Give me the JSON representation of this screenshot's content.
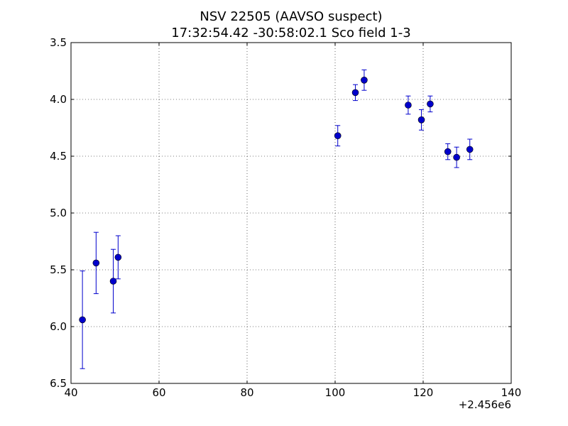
{
  "chart_data": {
    "type": "scatter",
    "title": "NSV 22505  (AAVSO suspect)",
    "subtitle": "17:32:54.42 -30:58:02.1 Sco field 1-3",
    "xlabel": "",
    "ylabel": "",
    "x_offset_label": "+2.456e6",
    "xlim": [
      40,
      140
    ],
    "ylim": [
      6.5,
      3.5
    ],
    "y_inverted": true,
    "grid": true,
    "xticks": [
      40,
      60,
      80,
      100,
      120,
      140
    ],
    "xtick_labels": [
      "40",
      "60",
      "80",
      "100",
      "120",
      "140"
    ],
    "yticks": [
      3.5,
      4.0,
      4.5,
      5.0,
      5.5,
      6.0,
      6.5
    ],
    "ytick_labels": [
      "3.5",
      "4.0",
      "4.5",
      "5.0",
      "5.5",
      "6.0",
      "6.5"
    ],
    "series": [
      {
        "color": "#0000cc",
        "marker": "circle",
        "points": [
          {
            "x": 42.6,
            "y": 5.94,
            "err": 0.43
          },
          {
            "x": 45.7,
            "y": 5.44,
            "err": 0.27
          },
          {
            "x": 49.6,
            "y": 5.6,
            "err": 0.28
          },
          {
            "x": 50.7,
            "y": 5.39,
            "err": 0.19
          },
          {
            "x": 100.6,
            "y": 4.32,
            "err": 0.09
          },
          {
            "x": 104.6,
            "y": 3.94,
            "err": 0.07
          },
          {
            "x": 106.6,
            "y": 3.83,
            "err": 0.09
          },
          {
            "x": 116.6,
            "y": 4.05,
            "err": 0.08
          },
          {
            "x": 119.6,
            "y": 4.18,
            "err": 0.09
          },
          {
            "x": 121.6,
            "y": 4.04,
            "err": 0.07
          },
          {
            "x": 125.6,
            "y": 4.46,
            "err": 0.07
          },
          {
            "x": 127.6,
            "y": 4.51,
            "err": 0.09
          },
          {
            "x": 130.6,
            "y": 4.44,
            "err": 0.09
          }
        ]
      }
    ]
  }
}
